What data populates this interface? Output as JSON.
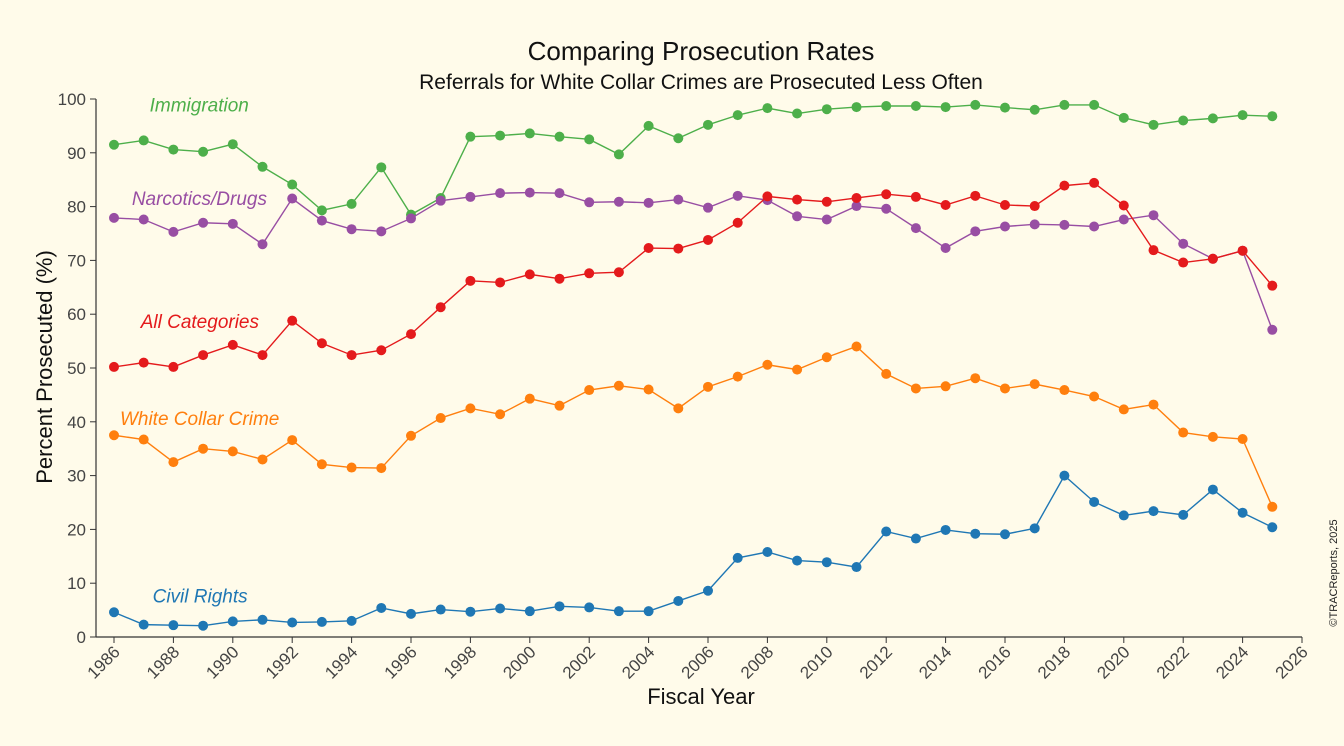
{
  "chart_data": {
    "type": "line",
    "title": "Comparing Prosecution Rates",
    "subtitle": "Referrals for White Collar Crimes are Prosecuted Less Often",
    "xlabel": "Fiscal Year",
    "ylabel": "Percent Prosecuted (%)",
    "xlim": [
      1986,
      2026
    ],
    "ylim": [
      0,
      100
    ],
    "x_ticks": [
      "1986",
      "1988",
      "1990",
      "1992",
      "1994",
      "1996",
      "1998",
      "2000",
      "2002",
      "2004",
      "2006",
      "2008",
      "2010",
      "2012",
      "2014",
      "2016",
      "2018",
      "2020",
      "2022",
      "2024",
      "2026"
    ],
    "y_ticks": [
      "0",
      "10",
      "20",
      "30",
      "40",
      "50",
      "60",
      "70",
      "80",
      "90",
      "100"
    ],
    "grid": false,
    "legend": "inline labels",
    "x": [
      1986,
      1987,
      1988,
      1989,
      1990,
      1991,
      1992,
      1993,
      1994,
      1995,
      1996,
      1997,
      1998,
      1999,
      2000,
      2001,
      2002,
      2003,
      2004,
      2005,
      2006,
      2007,
      2008,
      2009,
      2010,
      2011,
      2012,
      2013,
      2014,
      2015,
      2016,
      2017,
      2018,
      2019,
      2020,
      2021,
      2022,
      2023,
      2024,
      2025
    ],
    "series": [
      {
        "name": "Immigration",
        "color": "#4daf4a",
        "values": [
          91.5,
          92.3,
          90.6,
          90.2,
          91.6,
          87.4,
          84.1,
          79.3,
          80.5,
          87.3,
          78.5,
          81.6,
          93.0,
          93.2,
          93.6,
          93.0,
          92.5,
          89.7,
          95.0,
          92.7,
          95.2,
          97.0,
          98.3,
          97.3,
          98.1,
          98.5,
          98.7,
          98.7,
          98.5,
          98.9,
          98.4,
          98.0,
          98.9,
          98.9,
          96.5,
          95.2,
          96.0,
          96.4,
          97.0,
          96.8
        ],
        "label_x": 1987.2,
        "label_y": 97.7
      },
      {
        "name": "Narcotics/Drugs",
        "color": "#984ea3",
        "values": [
          77.9,
          77.6,
          75.3,
          77.0,
          76.8,
          73.0,
          81.5,
          77.4,
          75.8,
          75.4,
          77.8,
          81.1,
          81.8,
          82.5,
          82.6,
          82.5,
          80.8,
          80.9,
          80.7,
          81.3,
          79.8,
          82.0,
          81.2,
          78.2,
          77.6,
          80.1,
          79.6,
          76.0,
          72.3,
          75.4,
          76.3,
          76.7,
          76.6,
          76.3,
          77.6,
          78.4,
          73.1,
          70.3,
          71.8,
          57.1
        ],
        "label_x": 1986.6,
        "label_y": 80.3
      },
      {
        "name": "All Categories",
        "color": "#e41a1c",
        "values": [
          50.2,
          51.0,
          50.2,
          52.4,
          54.3,
          52.4,
          58.8,
          54.6,
          52.4,
          53.3,
          56.3,
          61.3,
          66.2,
          65.9,
          67.4,
          66.6,
          67.6,
          67.8,
          72.3,
          72.2,
          73.8,
          77.0,
          81.9,
          81.3,
          80.9,
          81.6,
          82.3,
          81.8,
          80.3,
          82.0,
          80.3,
          80.1,
          83.9,
          84.4,
          80.2,
          71.9,
          69.6,
          70.3,
          71.8,
          65.3
        ],
        "label_x": 1986.9,
        "label_y": 57.4
      },
      {
        "name": "White Collar Crime",
        "color": "#ff7f0e",
        "values": [
          37.5,
          36.7,
          32.5,
          35.0,
          34.5,
          33.0,
          36.6,
          32.1,
          31.5,
          31.4,
          37.4,
          40.7,
          42.5,
          41.4,
          44.3,
          43.0,
          45.9,
          46.7,
          46.0,
          42.5,
          46.5,
          48.4,
          50.6,
          49.7,
          52.0,
          54.0,
          48.9,
          46.2,
          46.6,
          48.1,
          46.2,
          47.0,
          45.9,
          44.7,
          42.3,
          43.2,
          38.0,
          37.2,
          36.8,
          24.2
        ],
        "label_x": 1986.2,
        "label_y": 39.4
      },
      {
        "name": "Civil Rights",
        "color": "#1f77b4",
        "values": [
          4.6,
          2.3,
          2.2,
          2.1,
          2.9,
          3.2,
          2.7,
          2.8,
          3.0,
          5.4,
          4.3,
          5.1,
          4.7,
          5.3,
          4.8,
          5.7,
          5.5,
          4.8,
          4.8,
          6.7,
          8.6,
          14.7,
          15.8,
          14.2,
          13.9,
          13.0,
          19.6,
          18.3,
          19.9,
          19.2,
          19.1,
          20.2,
          30.0,
          25.1,
          22.6,
          23.4,
          22.7,
          27.4,
          23.1,
          20.4
        ],
        "label_x": 1987.3,
        "label_y": 6.4
      }
    ]
  },
  "watermark": "©TRACReports, 2025"
}
